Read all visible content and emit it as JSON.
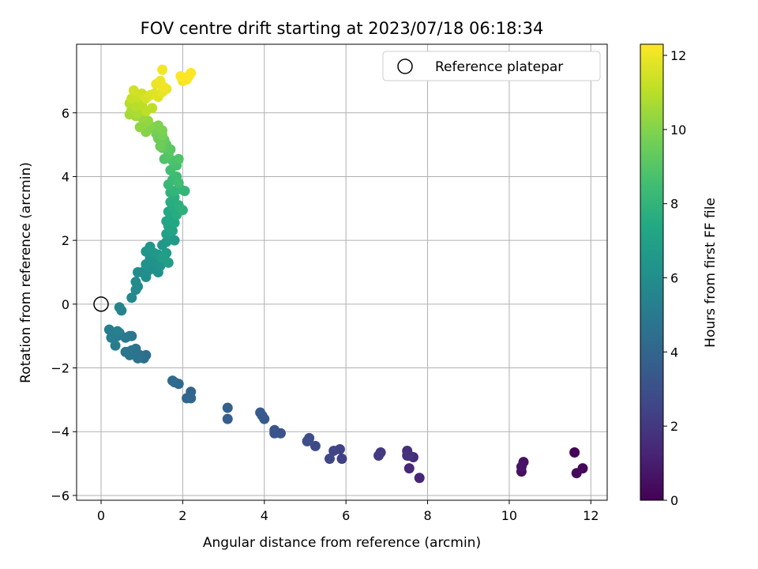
{
  "chart_data": {
    "type": "scatter",
    "title": "FOV centre drift starting at 2023/07/18 06:18:34",
    "xlabel": "Angular distance from reference (arcmin)",
    "ylabel": "Rotation from reference (arcmin)",
    "xlim": [
      -0.6,
      12.4
    ],
    "ylim": [
      -6.15,
      8.15
    ],
    "xticks": [
      0,
      2,
      4,
      6,
      8,
      10,
      12
    ],
    "yticks": [
      -6,
      -4,
      -2,
      0,
      2,
      4,
      6
    ],
    "grid": true,
    "legend": {
      "placement": "top-right",
      "entries": [
        "Reference platepar"
      ]
    },
    "reference_point": {
      "x": 0,
      "y": 0,
      "label": "Reference platepar"
    },
    "colorbar": {
      "label": "Hours from first FF file",
      "colormap": "viridis",
      "range": [
        0,
        12.3
      ],
      "ticks": [
        0,
        2,
        4,
        6,
        8,
        10,
        12
      ]
    },
    "points": [
      [
        11.6,
        -4.65,
        0.1
      ],
      [
        11.8,
        -5.15,
        0.2
      ],
      [
        11.65,
        -5.3,
        0.3
      ],
      [
        10.3,
        -5.25,
        0.5
      ],
      [
        10.35,
        -4.95,
        0.6
      ],
      [
        10.3,
        -5.1,
        0.7
      ],
      [
        7.8,
        -5.45,
        1.3
      ],
      [
        7.55,
        -5.15,
        1.4
      ],
      [
        7.65,
        -4.8,
        1.5
      ],
      [
        7.5,
        -4.6,
        1.6
      ],
      [
        7.55,
        -4.75,
        1.7
      ],
      [
        7.5,
        -4.75,
        1.8
      ],
      [
        6.85,
        -4.65,
        2.0
      ],
      [
        6.8,
        -4.75,
        2.1
      ],
      [
        5.9,
        -4.85,
        2.3
      ],
      [
        5.85,
        -4.55,
        2.4
      ],
      [
        5.7,
        -4.6,
        2.5
      ],
      [
        5.6,
        -4.85,
        2.6
      ],
      [
        5.25,
        -4.45,
        2.75
      ],
      [
        5.1,
        -4.2,
        2.85
      ],
      [
        5.05,
        -4.3,
        2.9
      ],
      [
        4.4,
        -4.05,
        3.1
      ],
      [
        4.25,
        -3.95,
        3.2
      ],
      [
        4.25,
        -4.05,
        3.25
      ],
      [
        4.0,
        -3.6,
        3.4
      ],
      [
        3.95,
        -3.5,
        3.45
      ],
      [
        3.9,
        -3.4,
        3.5
      ],
      [
        3.1,
        -3.6,
        3.7
      ],
      [
        3.1,
        -3.25,
        3.75
      ],
      [
        2.2,
        -2.75,
        4.0
      ],
      [
        2.2,
        -2.95,
        4.05
      ],
      [
        2.1,
        -2.95,
        4.1
      ],
      [
        1.9,
        -2.5,
        4.2
      ],
      [
        1.8,
        -2.45,
        4.25
      ],
      [
        1.75,
        -2.4,
        4.3
      ],
      [
        1.1,
        -1.6,
        4.5
      ],
      [
        1.05,
        -1.7,
        4.55
      ],
      [
        0.95,
        -1.6,
        4.6
      ],
      [
        0.9,
        -1.7,
        4.62
      ],
      [
        0.85,
        -1.4,
        4.65
      ],
      [
        0.8,
        -1.55,
        4.7
      ],
      [
        0.75,
        -1.45,
        4.72
      ],
      [
        0.7,
        -1.6,
        4.75
      ],
      [
        0.65,
        -1.5,
        4.8
      ],
      [
        0.6,
        -1.5,
        4.82
      ],
      [
        0.75,
        -1.0,
        4.85
      ],
      [
        0.7,
        -1.0,
        4.9
      ],
      [
        0.6,
        -1.05,
        4.95
      ],
      [
        0.45,
        -0.9,
        5.0
      ],
      [
        0.4,
        -1.0,
        5.05
      ],
      [
        0.35,
        -1.3,
        5.1
      ],
      [
        0.3,
        -0.95,
        5.12
      ],
      [
        0.25,
        -1.05,
        5.15
      ],
      [
        0.2,
        -0.8,
        5.2
      ],
      [
        0.4,
        -0.85,
        5.25
      ],
      [
        0.5,
        -0.2,
        5.45
      ],
      [
        0.45,
        -0.1,
        5.5
      ],
      [
        0.75,
        0.2,
        5.7
      ],
      [
        0.85,
        0.45,
        5.75
      ],
      [
        0.9,
        0.55,
        5.8
      ],
      [
        0.85,
        0.7,
        5.85
      ],
      [
        0.9,
        1.0,
        5.9
      ],
      [
        1.0,
        1.0,
        5.95
      ],
      [
        1.1,
        0.85,
        6.0
      ],
      [
        1.15,
        1.05,
        6.05
      ],
      [
        1.2,
        1.2,
        6.1
      ],
      [
        1.3,
        1.1,
        6.12
      ],
      [
        1.4,
        1.0,
        6.15
      ],
      [
        1.1,
        1.25,
        6.2
      ],
      [
        1.2,
        1.45,
        6.25
      ],
      [
        1.35,
        1.3,
        6.28
      ],
      [
        1.45,
        1.2,
        6.3
      ],
      [
        1.1,
        1.65,
        6.35
      ],
      [
        1.2,
        1.8,
        6.4
      ],
      [
        1.3,
        1.6,
        6.45
      ],
      [
        1.4,
        1.55,
        6.5
      ],
      [
        1.5,
        1.85,
        6.55
      ],
      [
        1.6,
        1.95,
        6.6
      ],
      [
        1.7,
        2.05,
        6.65
      ],
      [
        1.8,
        2.0,
        6.7
      ],
      [
        1.6,
        1.6,
        6.75
      ],
      [
        1.65,
        1.3,
        6.8
      ],
      [
        1.5,
        1.45,
        6.85
      ],
      [
        1.6,
        2.2,
        7.0
      ],
      [
        1.65,
        2.45,
        7.1
      ],
      [
        1.75,
        2.3,
        7.15
      ],
      [
        1.6,
        2.6,
        7.2
      ],
      [
        1.7,
        2.8,
        7.3
      ],
      [
        1.8,
        2.55,
        7.35
      ],
      [
        1.65,
        2.9,
        7.4
      ],
      [
        1.75,
        3.05,
        7.5
      ],
      [
        1.85,
        2.8,
        7.55
      ],
      [
        1.7,
        3.2,
        7.6
      ],
      [
        1.8,
        3.35,
        7.7
      ],
      [
        1.9,
        3.1,
        7.75
      ],
      [
        2.0,
        2.95,
        7.8
      ],
      [
        1.7,
        3.5,
        7.9
      ],
      [
        1.8,
        3.55,
        8.0
      ],
      [
        1.95,
        3.6,
        8.05
      ],
      [
        2.05,
        3.55,
        8.1
      ],
      [
        1.65,
        3.75,
        8.2
      ],
      [
        1.75,
        3.9,
        8.3
      ],
      [
        1.85,
        4.0,
        8.4
      ],
      [
        1.9,
        3.8,
        8.45
      ],
      [
        1.7,
        4.2,
        8.55
      ],
      [
        1.85,
        4.35,
        8.65
      ],
      [
        1.75,
        4.5,
        8.75
      ],
      [
        1.9,
        4.55,
        8.85
      ],
      [
        1.55,
        4.55,
        8.9
      ],
      [
        1.65,
        4.7,
        9.0
      ],
      [
        1.7,
        4.85,
        9.1
      ],
      [
        1.6,
        5.0,
        9.2
      ],
      [
        1.5,
        4.9,
        9.3
      ],
      [
        1.55,
        5.15,
        9.4
      ],
      [
        1.4,
        5.2,
        9.5
      ],
      [
        1.45,
        4.95,
        9.55
      ],
      [
        1.35,
        5.35,
        9.65
      ],
      [
        1.5,
        5.3,
        9.7
      ],
      [
        1.3,
        5.5,
        9.8
      ],
      [
        1.5,
        5.45,
        9.85
      ],
      [
        1.4,
        5.6,
        9.9
      ],
      [
        1.2,
        5.6,
        10.0
      ],
      [
        1.1,
        5.4,
        10.05
      ],
      [
        1.05,
        5.65,
        10.15
      ],
      [
        0.95,
        5.55,
        10.25
      ],
      [
        1.15,
        5.75,
        10.3
      ],
      [
        1.0,
        5.85,
        10.4
      ],
      [
        0.85,
        5.9,
        10.5
      ],
      [
        0.7,
        5.95,
        10.6
      ],
      [
        0.75,
        6.1,
        10.7
      ],
      [
        0.9,
        6.0,
        10.75
      ],
      [
        0.7,
        6.3,
        10.9
      ],
      [
        0.85,
        6.2,
        10.95
      ],
      [
        1.0,
        6.25,
        11.0
      ],
      [
        1.1,
        6.05,
        11.05
      ],
      [
        1.25,
        6.15,
        11.1
      ],
      [
        0.75,
        6.45,
        11.2
      ],
      [
        0.9,
        6.5,
        11.3
      ],
      [
        1.0,
        6.6,
        11.4
      ],
      [
        0.8,
        6.7,
        11.45
      ],
      [
        1.1,
        6.45,
        11.5
      ],
      [
        1.2,
        6.55,
        11.6
      ],
      [
        1.3,
        6.6,
        11.7
      ],
      [
        1.4,
        6.5,
        11.75
      ],
      [
        1.5,
        6.65,
        11.85
      ],
      [
        1.6,
        6.75,
        11.9
      ],
      [
        1.35,
        6.9,
        11.95
      ],
      [
        1.45,
        7.0,
        12.0
      ],
      [
        1.5,
        7.35,
        12.1
      ],
      [
        1.55,
        6.8,
        12.05
      ],
      [
        2.0,
        7.0,
        12.15
      ],
      [
        2.1,
        7.05,
        12.2
      ],
      [
        2.15,
        7.15,
        12.25
      ],
      [
        2.2,
        7.25,
        12.3
      ],
      [
        1.95,
        7.15,
        12.3
      ]
    ]
  }
}
